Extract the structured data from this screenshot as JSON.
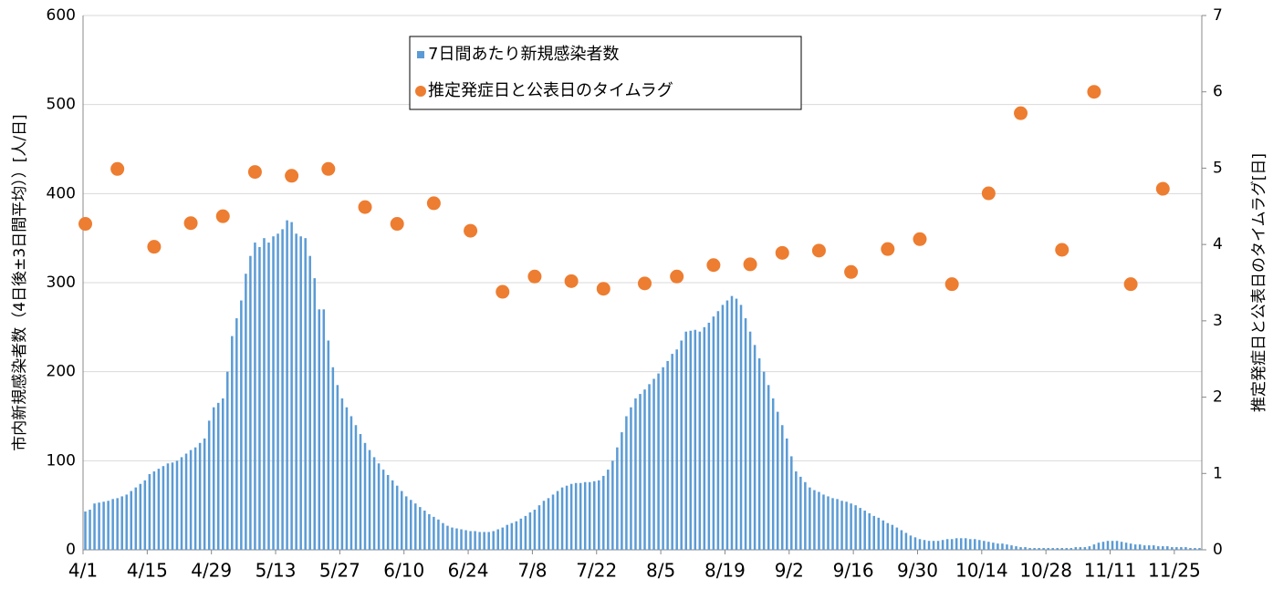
{
  "chart_data": {
    "type": "bar",
    "y_label": "市内新規感染者数（4日後±3日間平均））[人/日]",
    "y2_label": "推定発症日と公表日のタイムラグ[日]",
    "categories": [
      "4/1",
      null,
      null,
      null,
      null,
      null,
      null,
      null,
      null,
      null,
      null,
      null,
      null,
      null,
      "4/15",
      null,
      null,
      null,
      null,
      null,
      null,
      null,
      null,
      null,
      null,
      null,
      null,
      null,
      "4/29",
      null,
      null,
      null,
      null,
      null,
      null,
      null,
      null,
      null,
      null,
      null,
      null,
      null,
      "5/13",
      null,
      null,
      null,
      null,
      null,
      null,
      null,
      null,
      null,
      null,
      null,
      null,
      null,
      "5/27",
      null,
      null,
      null,
      null,
      null,
      null,
      null,
      null,
      null,
      null,
      null,
      null,
      null,
      "6/10",
      null,
      null,
      null,
      null,
      null,
      null,
      null,
      null,
      null,
      null,
      null,
      null,
      null,
      "6/24",
      null,
      null,
      null,
      null,
      null,
      null,
      null,
      null,
      null,
      null,
      null,
      null,
      null,
      "7/8",
      null,
      null,
      null,
      null,
      null,
      null,
      null,
      null,
      null,
      null,
      null,
      null,
      null,
      "7/22",
      null,
      null,
      null,
      null,
      null,
      null,
      null,
      null,
      null,
      null,
      null,
      null,
      null,
      "8/5",
      null,
      null,
      null,
      null,
      null,
      null,
      null,
      null,
      null,
      null,
      null,
      null,
      null,
      "8/19",
      null,
      null,
      null,
      null,
      null,
      null,
      null,
      null,
      null,
      null,
      null,
      null,
      null,
      "9/2",
      null,
      null,
      null,
      null,
      null,
      null,
      null,
      null,
      null,
      null,
      null,
      null,
      null,
      "9/16",
      null,
      null,
      null,
      null,
      null,
      null,
      null,
      null,
      null,
      null,
      null,
      null,
      null,
      "9/30",
      null,
      null,
      null,
      null,
      null,
      null,
      null,
      null,
      null,
      null,
      null,
      null,
      null,
      "10/14",
      null,
      null,
      null,
      null,
      null,
      null,
      null,
      null,
      null,
      null,
      null,
      null,
      null,
      "10/28",
      null,
      null,
      null,
      null,
      null,
      null,
      null,
      null,
      null,
      null,
      null,
      null,
      null,
      "11/11",
      null,
      null,
      null,
      null,
      null,
      null,
      null,
      null,
      null,
      null,
      null,
      null,
      null,
      "11/25",
      null,
      null,
      null,
      null,
      null
    ],
    "series": [
      {
        "name": "7日間あたり新規感染者数",
        "type": "bar",
        "color": "#5b9bd5",
        "values": [
          43,
          45,
          52,
          53,
          54,
          55,
          57,
          58,
          60,
          62,
          66,
          70,
          74,
          78,
          85,
          88,
          91,
          94,
          97,
          98,
          100,
          104,
          108,
          112,
          115,
          120,
          125,
          145,
          160,
          165,
          170,
          200,
          240,
          260,
          280,
          310,
          330,
          345,
          340,
          350,
          345,
          352,
          355,
          360,
          370,
          368,
          355,
          352,
          350,
          330,
          305,
          270,
          270,
          235,
          205,
          185,
          170,
          160,
          150,
          140,
          130,
          120,
          112,
          104,
          97,
          90,
          84,
          78,
          72,
          66,
          60,
          56,
          52,
          48,
          44,
          40,
          37,
          34,
          30,
          27,
          25,
          24,
          23,
          22,
          21,
          21,
          20,
          20,
          20,
          21,
          23,
          25,
          28,
          30,
          32,
          35,
          38,
          42,
          45,
          50,
          55,
          58,
          62,
          66,
          70,
          72,
          74,
          75,
          75,
          76,
          76,
          77,
          78,
          83,
          90,
          100,
          115,
          132,
          150,
          160,
          170,
          175,
          180,
          186,
          192,
          198,
          205,
          212,
          220,
          225,
          235,
          245,
          246,
          247,
          245,
          250,
          255,
          262,
          268,
          275,
          280,
          285,
          282,
          275,
          260,
          245,
          230,
          215,
          200,
          185,
          170,
          155,
          140,
          125,
          105,
          88,
          82,
          76,
          70,
          67,
          65,
          62,
          60,
          58,
          57,
          55,
          54,
          52,
          50,
          47,
          44,
          41,
          38,
          36,
          33,
          30,
          28,
          25,
          22,
          19,
          16,
          14,
          12,
          11,
          10,
          10,
          10,
          11,
          12,
          12,
          13,
          13,
          13,
          12,
          12,
          11,
          10,
          9,
          8,
          7,
          7,
          6,
          5,
          4,
          3,
          3,
          2,
          2,
          2,
          2,
          2,
          2,
          2,
          2,
          2,
          2,
          3,
          3,
          3,
          4,
          6,
          8,
          9,
          10,
          10,
          10,
          9,
          8,
          7,
          6,
          6,
          5,
          5,
          5,
          4,
          4,
          4,
          3,
          3,
          3,
          3,
          2,
          2,
          2
        ]
      },
      {
        "name": "推定発症日と公表日のタイムラグ",
        "type": "scatter",
        "axis": "y2",
        "color": "#ed7d31",
        "x": [
          "4/1",
          "4/8",
          "4/16",
          "4/24",
          "5/1",
          "5/8",
          "5/16",
          "5/24",
          "6/1",
          "6/8",
          "6/16",
          "6/24",
          "7/1",
          "7/8",
          "7/16",
          "7/23",
          "8/1",
          "8/8",
          "8/16",
          "8/24",
          "8/31",
          "9/8",
          "9/15",
          "9/23",
          "9/30",
          "10/7",
          "10/15",
          "10/22",
          "10/31",
          "11/7",
          "11/15",
          "11/22"
        ],
        "values": [
          4.27,
          4.99,
          3.97,
          4.28,
          4.37,
          4.95,
          4.9,
          4.99,
          4.49,
          4.27,
          4.54,
          4.18,
          3.38,
          3.58,
          3.52,
          3.42,
          3.49,
          3.58,
          3.73,
          3.74,
          3.89,
          3.92,
          3.64,
          3.94,
          4.07,
          3.48,
          4.67,
          5.72,
          3.93,
          6.0,
          3.48,
          4.73
        ]
      }
    ],
    "ylim": [
      0,
      600
    ],
    "yticks": [
      0,
      100,
      200,
      300,
      400,
      500,
      600
    ],
    "y2lim": [
      0,
      7
    ],
    "y2ticks": [
      0,
      1,
      2,
      3,
      4,
      5,
      6,
      7
    ],
    "grid": true,
    "legend": "top"
  }
}
